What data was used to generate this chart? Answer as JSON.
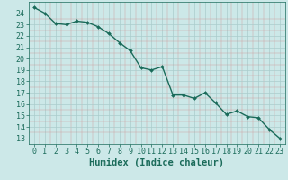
{
  "x": [
    0,
    1,
    2,
    3,
    4,
    5,
    6,
    7,
    8,
    9,
    10,
    11,
    12,
    13,
    14,
    15,
    16,
    17,
    18,
    19,
    20,
    21,
    22,
    23
  ],
  "y": [
    24.5,
    24.0,
    23.1,
    23.0,
    23.3,
    23.2,
    22.8,
    22.2,
    21.4,
    20.7,
    19.2,
    19.0,
    19.3,
    16.8,
    16.8,
    16.5,
    17.0,
    16.1,
    15.1,
    15.4,
    14.9,
    14.8,
    13.8,
    13.0
  ],
  "line_color": "#1a6b5a",
  "marker": "D",
  "marker_size": 2.0,
  "bg_color": "#cce8e8",
  "grid_major_color": "#aacccc",
  "grid_minor_color": "#bbdddd",
  "xlabel": "Humidex (Indice chaleur)",
  "xlim": [
    -0.5,
    23.5
  ],
  "ylim": [
    12.5,
    25.0
  ],
  "yticks": [
    13,
    14,
    15,
    16,
    17,
    18,
    19,
    20,
    21,
    22,
    23,
    24
  ],
  "xticks": [
    0,
    1,
    2,
    3,
    4,
    5,
    6,
    7,
    8,
    9,
    10,
    11,
    12,
    13,
    14,
    15,
    16,
    17,
    18,
    19,
    20,
    21,
    22,
    23
  ],
  "tick_color": "#1a6b5a",
  "label_color": "#1a6b5a",
  "line_width": 1.0,
  "xlabel_fontsize": 7.5,
  "tick_fontsize": 6.0
}
